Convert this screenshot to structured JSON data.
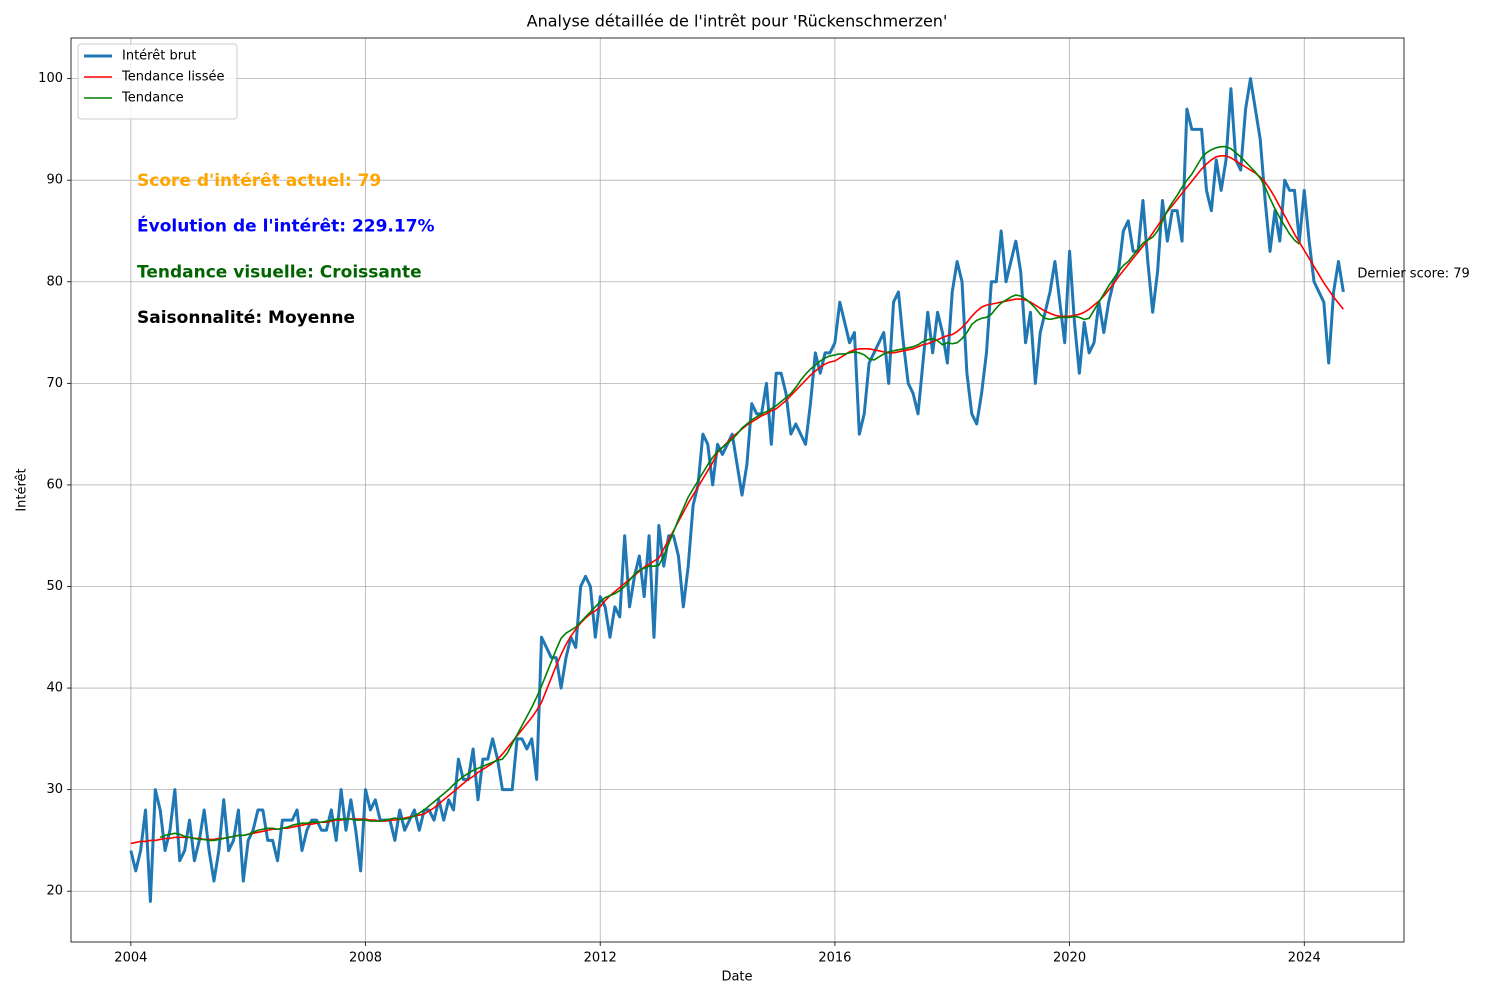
{
  "chart_data": {
    "type": "line",
    "title": "Analyse détaillée de l'intrêt pour 'Rückenschmerzen'",
    "x_label": "Date",
    "y_label": "Intérêt",
    "x": [
      "2004-01",
      "2004-02",
      "2004-03",
      "2004-04",
      "2004-05",
      "2004-06",
      "2004-07",
      "2004-08",
      "2004-09",
      "2004-10",
      "2004-11",
      "2004-12",
      "2005-01",
      "2005-02",
      "2005-03",
      "2005-04",
      "2005-05",
      "2005-06",
      "2005-07",
      "2005-08",
      "2005-09",
      "2005-10",
      "2005-11",
      "2005-12",
      "2006-01",
      "2006-02",
      "2006-03",
      "2006-04",
      "2006-05",
      "2006-06",
      "2006-07",
      "2006-08",
      "2006-09",
      "2006-10",
      "2006-11",
      "2006-12",
      "2007-01",
      "2007-02",
      "2007-03",
      "2007-04",
      "2007-05",
      "2007-06",
      "2007-07",
      "2007-08",
      "2007-09",
      "2007-10",
      "2007-11",
      "2007-12",
      "2008-01",
      "2008-02",
      "2008-03",
      "2008-04",
      "2008-05",
      "2008-06",
      "2008-07",
      "2008-08",
      "2008-09",
      "2008-10",
      "2008-11",
      "2008-12",
      "2009-01",
      "2009-02",
      "2009-03",
      "2009-04",
      "2009-05",
      "2009-06",
      "2009-07",
      "2009-08",
      "2009-09",
      "2009-10",
      "2009-11",
      "2009-12",
      "2010-01",
      "2010-02",
      "2010-03",
      "2010-04",
      "2010-05",
      "2010-06",
      "2010-07",
      "2010-08",
      "2010-09",
      "2010-10",
      "2010-11",
      "2010-12",
      "2011-01",
      "2011-02",
      "2011-03",
      "2011-04",
      "2011-05",
      "2011-06",
      "2011-07",
      "2011-08",
      "2011-09",
      "2011-10",
      "2011-11",
      "2011-12",
      "2012-01",
      "2012-02",
      "2012-03",
      "2012-04",
      "2012-05",
      "2012-06",
      "2012-07",
      "2012-08",
      "2012-09",
      "2012-10",
      "2012-11",
      "2012-12",
      "2013-01",
      "2013-02",
      "2013-03",
      "2013-04",
      "2013-05",
      "2013-06",
      "2013-07",
      "2013-08",
      "2013-09",
      "2013-10",
      "2013-11",
      "2013-12",
      "2014-01",
      "2014-02",
      "2014-03",
      "2014-04",
      "2014-05",
      "2014-06",
      "2014-07",
      "2014-08",
      "2014-09",
      "2014-10",
      "2014-11",
      "2014-12",
      "2015-01",
      "2015-02",
      "2015-03",
      "2015-04",
      "2015-05",
      "2015-06",
      "2015-07",
      "2015-08",
      "2015-09",
      "2015-10",
      "2015-11",
      "2015-12",
      "2016-01",
      "2016-02",
      "2016-03",
      "2016-04",
      "2016-05",
      "2016-06",
      "2016-07",
      "2016-08",
      "2016-09",
      "2016-10",
      "2016-11",
      "2016-12",
      "2017-01",
      "2017-02",
      "2017-03",
      "2017-04",
      "2017-05",
      "2017-06",
      "2017-07",
      "2017-08",
      "2017-09",
      "2017-10",
      "2017-11",
      "2017-12",
      "2018-01",
      "2018-02",
      "2018-03",
      "2018-04",
      "2018-05",
      "2018-06",
      "2018-07",
      "2018-08",
      "2018-09",
      "2018-10",
      "2018-11",
      "2018-12",
      "2019-01",
      "2019-02",
      "2019-03",
      "2019-04",
      "2019-05",
      "2019-06",
      "2019-07",
      "2019-08",
      "2019-09",
      "2019-10",
      "2019-11",
      "2019-12",
      "2020-01",
      "2020-02",
      "2020-03",
      "2020-04",
      "2020-05",
      "2020-06",
      "2020-07",
      "2020-08",
      "2020-09",
      "2020-10",
      "2020-11",
      "2020-12",
      "2021-01",
      "2021-02",
      "2021-03",
      "2021-04",
      "2021-05",
      "2021-06",
      "2021-07",
      "2021-08",
      "2021-09",
      "2021-10",
      "2021-11",
      "2021-12",
      "2022-01",
      "2022-02",
      "2022-03",
      "2022-04",
      "2022-05",
      "2022-06",
      "2022-07",
      "2022-08",
      "2022-09",
      "2022-10",
      "2022-11",
      "2022-12",
      "2023-01",
      "2023-02",
      "2023-03",
      "2023-04",
      "2023-05",
      "2023-06",
      "2023-07",
      "2023-08",
      "2023-09",
      "2023-10",
      "2023-11",
      "2023-12",
      "2024-01",
      "2024-02",
      "2024-03",
      "2024-04",
      "2024-05",
      "2024-06",
      "2024-07",
      "2024-08",
      "2024-09"
    ],
    "series": [
      {
        "name": "Intérêt brut",
        "color": "#1f77b4",
        "width": 3,
        "values": [
          24,
          22,
          24,
          28,
          19,
          30,
          28,
          24,
          26,
          30,
          23,
          24,
          27,
          23,
          25,
          28,
          24,
          21,
          24,
          29,
          24,
          25,
          28,
          21,
          25,
          26,
          28,
          28,
          25,
          25,
          23,
          27,
          27,
          27,
          28,
          24,
          26,
          27,
          27,
          26,
          26,
          28,
          25,
          30,
          26,
          29,
          26,
          22,
          30,
          28,
          29,
          27,
          27,
          27,
          25,
          28,
          26,
          27,
          28,
          26,
          28,
          28,
          27,
          29,
          27,
          29,
          28,
          33,
          31,
          31,
          34,
          29,
          33,
          33,
          35,
          33,
          30,
          30,
          30,
          35,
          35,
          34,
          35,
          31,
          45,
          44,
          43,
          43,
          40,
          43,
          45,
          44,
          50,
          51,
          50,
          45,
          49,
          48,
          45,
          48,
          47,
          55,
          48,
          51,
          53,
          49,
          55,
          45,
          56,
          52,
          55,
          55,
          53,
          48,
          52,
          58,
          60,
          65,
          64,
          60,
          64,
          63,
          64,
          65,
          62,
          59,
          62,
          68,
          67,
          67,
          70,
          64,
          71,
          71,
          69,
          65,
          66,
          65,
          64,
          68,
          73,
          71,
          73,
          73,
          74,
          78,
          76,
          74,
          75,
          65,
          67,
          72,
          73,
          74,
          75,
          70,
          78,
          79,
          74,
          70,
          69,
          67,
          72,
          77,
          73,
          77,
          75,
          72,
          79,
          82,
          80,
          71,
          67,
          66,
          69,
          73,
          80,
          80,
          85,
          80,
          82,
          84,
          81,
          74,
          77,
          70,
          75,
          77,
          79,
          82,
          78,
          74,
          83,
          76,
          71,
          76,
          73,
          74,
          78,
          75,
          78,
          80,
          81,
          85,
          86,
          83,
          83,
          88,
          82,
          77,
          81,
          88,
          84,
          87,
          87,
          84,
          97,
          95,
          95,
          95,
          89,
          87,
          92,
          89,
          92,
          99,
          92,
          91,
          97,
          100,
          97,
          94,
          88,
          83,
          87,
          84,
          90,
          89,
          89,
          84,
          89,
          84,
          80,
          79,
          78,
          72,
          79,
          82,
          79
        ]
      },
      {
        "name": "Tendance lissée",
        "color": "#ff0000",
        "width": 1.6,
        "values": [
          24.7,
          24.8,
          24.9,
          24.9,
          25.0,
          25.0,
          25.1,
          25.2,
          25.2,
          25.3,
          25.3,
          25.3,
          25.3,
          25.2,
          25.2,
          25.1,
          25.1,
          25.1,
          25.2,
          25.2,
          25.3,
          25.4,
          25.5,
          25.5,
          25.6,
          25.7,
          25.8,
          25.9,
          26.0,
          26.1,
          26.1,
          26.2,
          26.2,
          26.3,
          26.4,
          26.5,
          26.6,
          26.6,
          26.7,
          26.8,
          26.8,
          26.9,
          27.0,
          27.0,
          27.1,
          27.1,
          27.1,
          27.1,
          27.1,
          27.0,
          27.0,
          26.9,
          26.9,
          27.0,
          27.0,
          27.1,
          27.2,
          27.3,
          27.4,
          27.5,
          27.6,
          27.9,
          28.2,
          28.6,
          29.0,
          29.4,
          29.8,
          30.2,
          30.6,
          31.0,
          31.3,
          31.7,
          32.0,
          32.3,
          32.6,
          33.0,
          33.5,
          34.1,
          34.7,
          35.3,
          35.9,
          36.5,
          37.1,
          37.8,
          38.6,
          39.8,
          41.0,
          42.2,
          43.3,
          44.3,
          45.1,
          45.8,
          46.4,
          46.9,
          47.3,
          47.6,
          48.0,
          48.6,
          49.1,
          49.5,
          49.9,
          50.3,
          50.7,
          51.1,
          51.5,
          51.9,
          52.2,
          52.5,
          52.8,
          53.7,
          54.6,
          55.5,
          56.4,
          57.3,
          58.2,
          59.0,
          59.8,
          60.6,
          61.4,
          62.2,
          63.2,
          63.7,
          64.2,
          64.7,
          65.1,
          65.5,
          65.9,
          66.2,
          66.5,
          66.8,
          67.0,
          67.3,
          67.5,
          67.9,
          68.3,
          68.8,
          69.3,
          69.8,
          70.3,
          70.8,
          71.2,
          71.6,
          71.9,
          72.1,
          72.2,
          72.5,
          72.8,
          73.1,
          73.3,
          73.4,
          73.4,
          73.4,
          73.3,
          73.2,
          73.1,
          73.0,
          73.0,
          73.1,
          73.2,
          73.3,
          73.4,
          73.6,
          73.8,
          73.9,
          74.1,
          74.3,
          74.5,
          74.7,
          74.8,
          75.1,
          75.5,
          76.0,
          76.6,
          77.1,
          77.5,
          77.7,
          77.8,
          77.9,
          78.0,
          78.1,
          78.2,
          78.3,
          78.3,
          78.2,
          78.0,
          77.7,
          77.4,
          77.1,
          76.9,
          76.7,
          76.6,
          76.6,
          76.6,
          76.7,
          76.8,
          77.0,
          77.3,
          77.7,
          78.1,
          78.6,
          79.2,
          79.8,
          80.5,
          81.1,
          81.7,
          82.3,
          82.9,
          83.5,
          84.1,
          84.8,
          85.5,
          86.2,
          86.9,
          87.5,
          88.1,
          88.7,
          89.3,
          89.9,
          90.5,
          91.1,
          91.6,
          92.0,
          92.3,
          92.4,
          92.4,
          92.2,
          91.9,
          91.6,
          91.3,
          91.0,
          90.7,
          90.3,
          89.8,
          89.1,
          88.3,
          87.4,
          86.5,
          85.6,
          84.7,
          83.9,
          83.1,
          82.3,
          81.5,
          80.7,
          79.9,
          79.2,
          78.5,
          77.9,
          77.3
        ]
      },
      {
        "name": "Tendance",
        "color": "#008000",
        "width": 1.6,
        "values": [
          null,
          null,
          null,
          null,
          null,
          null,
          25.3,
          25.5,
          25.6,
          25.7,
          25.6,
          25.4,
          25.3,
          25.2,
          25.1,
          25.1,
          25.0,
          25.0,
          25.1,
          25.2,
          25.3,
          25.4,
          25.5,
          25.5,
          25.6,
          25.8,
          26.0,
          26.1,
          26.2,
          26.2,
          26.1,
          26.2,
          26.3,
          26.5,
          26.6,
          26.7,
          26.7,
          26.8,
          26.8,
          26.8,
          26.9,
          27.0,
          27.1,
          27.1,
          27.1,
          27.1,
          27.0,
          27.0,
          27.0,
          26.9,
          26.9,
          26.9,
          27.0,
          27.1,
          27.2,
          27.1,
          27.1,
          27.2,
          27.4,
          27.7,
          28.0,
          28.4,
          28.8,
          29.2,
          29.6,
          30.0,
          30.5,
          30.9,
          31.3,
          31.6,
          31.9,
          32.1,
          32.3,
          32.5,
          32.7,
          32.9,
          33.0,
          33.6,
          34.5,
          35.4,
          36.3,
          37.2,
          38.1,
          39.1,
          40.2,
          41.4,
          42.6,
          43.8,
          44.9,
          45.4,
          45.7,
          46.0,
          46.5,
          47.0,
          47.5,
          48.0,
          48.5,
          48.9,
          49.1,
          49.3,
          49.6,
          50.0,
          50.6,
          51.2,
          51.6,
          51.8,
          52.0,
          52.0,
          52.1,
          53.0,
          54.2,
          55.4,
          56.6,
          57.7,
          58.8,
          59.6,
          60.4,
          61.2,
          62.0,
          62.7,
          63.3,
          63.7,
          64.1,
          64.5,
          65.0,
          65.6,
          66.0,
          66.4,
          66.7,
          67.0,
          67.2,
          67.5,
          67.8,
          68.2,
          68.6,
          69.0,
          69.6,
          70.3,
          70.9,
          71.4,
          71.8,
          72.2,
          72.5,
          72.7,
          72.8,
          72.9,
          72.9,
          73.0,
          73.1,
          73.0,
          72.8,
          72.4,
          72.3,
          72.6,
          72.9,
          73.1,
          73.2,
          73.3,
          73.4,
          73.5,
          73.6,
          73.8,
          74.1,
          74.3,
          74.4,
          74.2,
          73.8,
          74.0,
          73.9,
          74.0,
          74.4,
          75.0,
          75.8,
          76.2,
          76.4,
          76.5,
          76.8,
          77.4,
          77.9,
          78.2,
          78.5,
          78.7,
          78.6,
          78.3,
          77.9,
          77.4,
          76.8,
          76.4,
          76.3,
          76.4,
          76.5,
          76.5,
          76.5,
          76.6,
          76.5,
          76.3,
          76.4,
          77.2,
          78.0,
          78.8,
          79.6,
          80.3,
          81.0,
          81.6,
          82.0,
          82.6,
          83.2,
          83.8,
          84.1,
          84.4,
          85.0,
          86.0,
          87.0,
          87.8,
          88.5,
          89.3,
          90.0,
          90.6,
          91.4,
          92.2,
          92.7,
          93.0,
          93.2,
          93.3,
          93.3,
          93.1,
          92.7,
          92.3,
          91.8,
          91.3,
          90.8,
          90.2,
          89.3,
          88.2,
          87.2,
          86.3,
          85.5,
          84.7,
          84.1,
          83.7,
          null,
          null,
          null,
          null,
          null,
          null,
          null,
          null,
          null
        ]
      }
    ],
    "xlim": [
      2002.98,
      2025.7
    ],
    "xticks": [
      2004,
      2008,
      2012,
      2016,
      2020,
      2024
    ],
    "ylim": [
      15,
      104
    ],
    "yticks": [
      20,
      30,
      40,
      50,
      60,
      70,
      80,
      90,
      100
    ],
    "grid": true,
    "legend": "upper left",
    "annotations": [
      {
        "text": "Score d'intérêt actuel: 79",
        "color": "#ffa500"
      },
      {
        "text": "Évolution de l'intérêt: 229.17%",
        "color": "#0000ff"
      },
      {
        "text": "Tendance visuelle: Croissante",
        "color": "#006400"
      },
      {
        "text": "Saisonnalité: Moyenne",
        "color": "#000000"
      }
    ],
    "last_label": "Dernier score: 79"
  }
}
